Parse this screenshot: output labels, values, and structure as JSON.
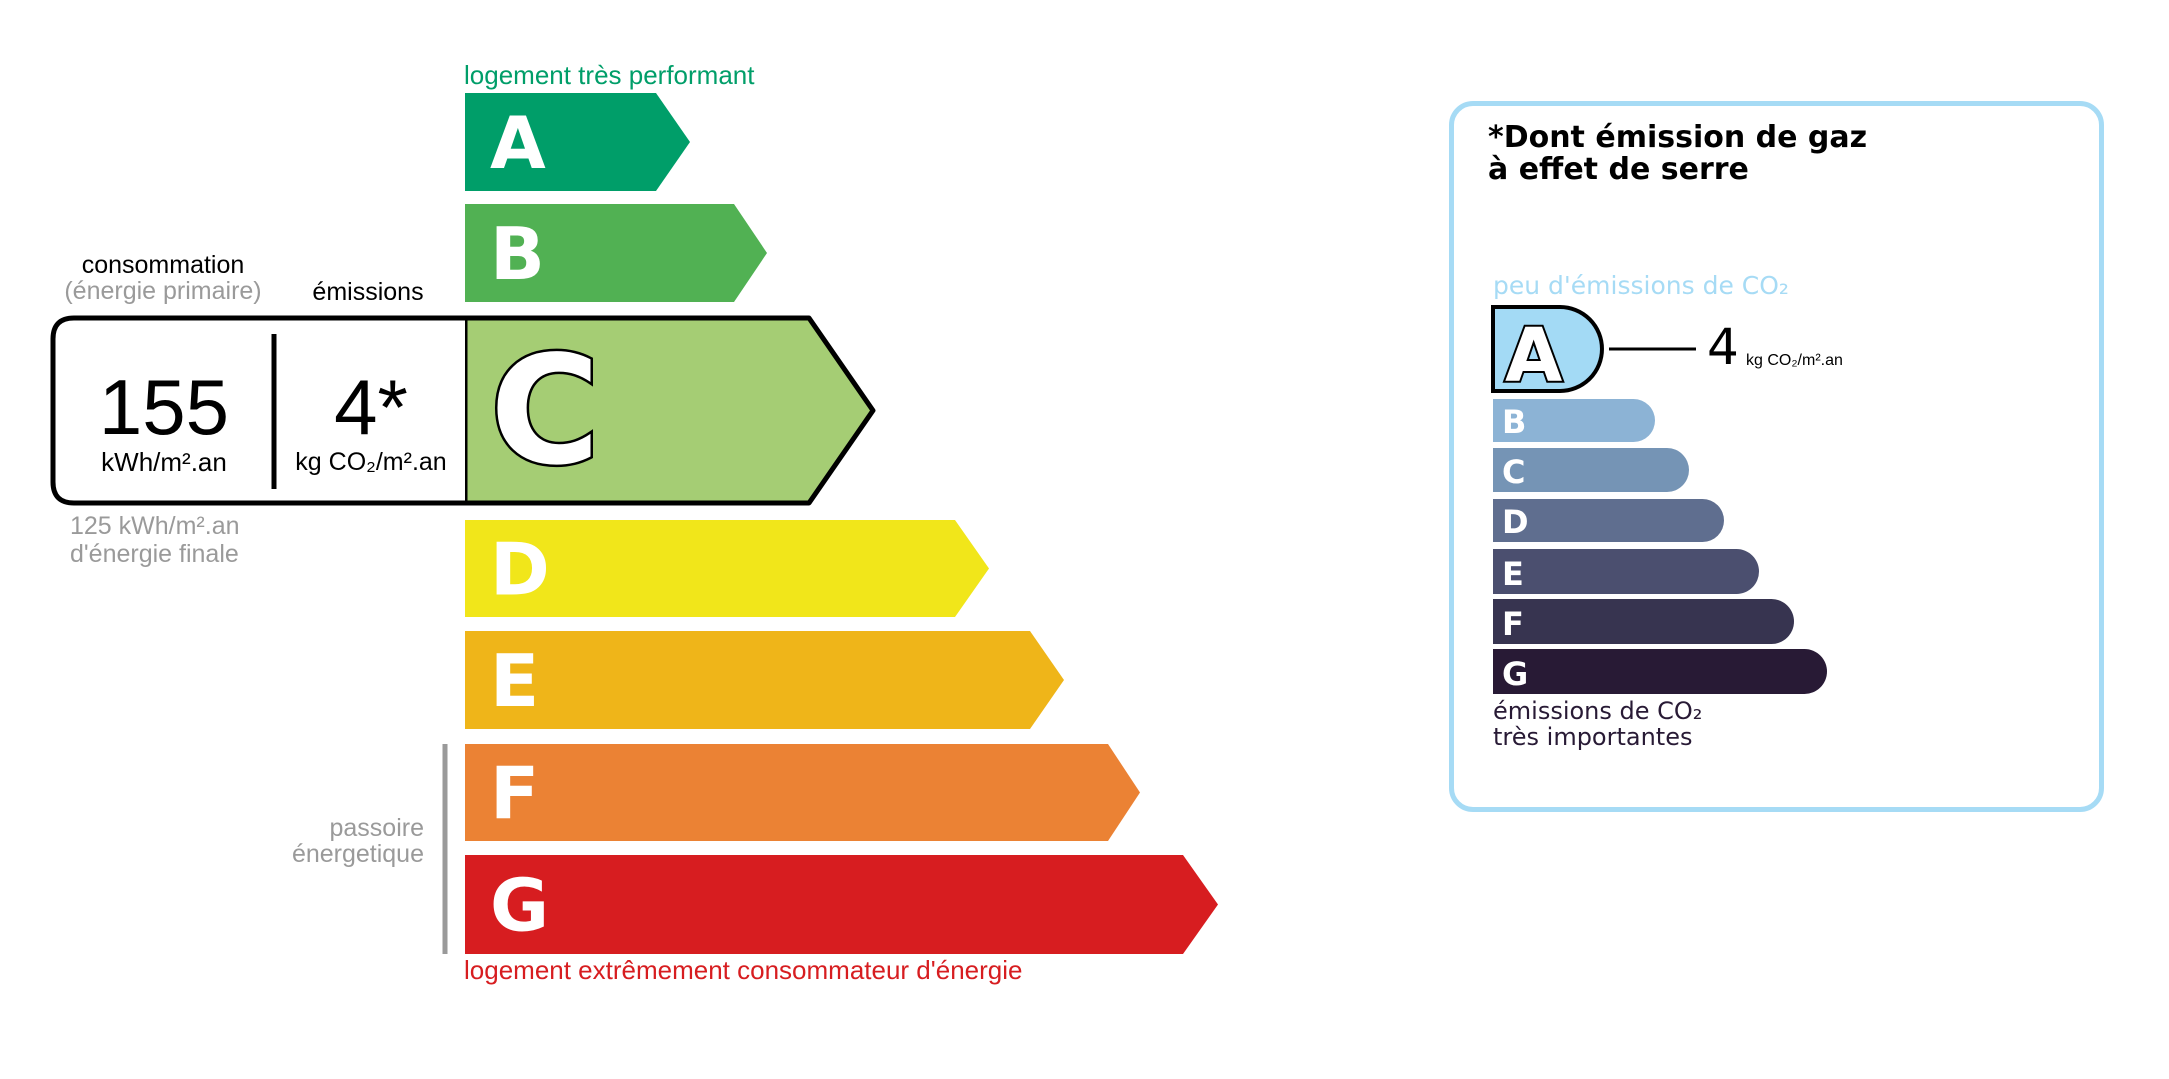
{
  "energy": {
    "top_label": "logement très performant",
    "bottom_label": "logement extrêmement consommateur d'énergie",
    "passoire_line1": "passoire",
    "passoire_line2": "énergetique",
    "current_class": "C",
    "classes": [
      {
        "letter": "A",
        "color": "#009e69"
      },
      {
        "letter": "B",
        "color": "#51b153"
      },
      {
        "letter": "C",
        "color": "#a5cd74"
      },
      {
        "letter": "D",
        "color": "#f1e61a"
      },
      {
        "letter": "E",
        "color": "#efb519"
      },
      {
        "letter": "F",
        "color": "#eb8234"
      },
      {
        "letter": "G",
        "color": "#d71d20"
      }
    ],
    "consumption_title": "consommation",
    "consumption_subtitle": "(énergie primaire)",
    "emissions_title": "émissions",
    "consumption_value": "155",
    "consumption_unit": "kWh/m².an",
    "emissions_value": "4*",
    "emissions_unit": "kg CO₂/m².an",
    "final_energy_line1": "125 kWh/m².an",
    "final_energy_line2": "d'énergie finale"
  },
  "ges": {
    "title_line1": "*Dont émission de gaz",
    "title_line2": "à effet de serre",
    "top_label": "peu d'émissions de CO₂",
    "bottom_label_line1": "émissions de CO₂",
    "bottom_label_line2": "très importantes",
    "current_class": "A",
    "value": "4",
    "unit": "kg CO₂/m².an",
    "border_color": "#a6dbf5",
    "classes": [
      {
        "letter": "A",
        "color": "#a3daf5"
      },
      {
        "letter": "B",
        "color": "#8cb3d5"
      },
      {
        "letter": "C",
        "color": "#7594b5"
      },
      {
        "letter": "D",
        "color": "#5f6e8f"
      },
      {
        "letter": "E",
        "color": "#4b4f6f"
      },
      {
        "letter": "F",
        "color": "#373450"
      },
      {
        "letter": "G",
        "color": "#281a35"
      }
    ]
  }
}
